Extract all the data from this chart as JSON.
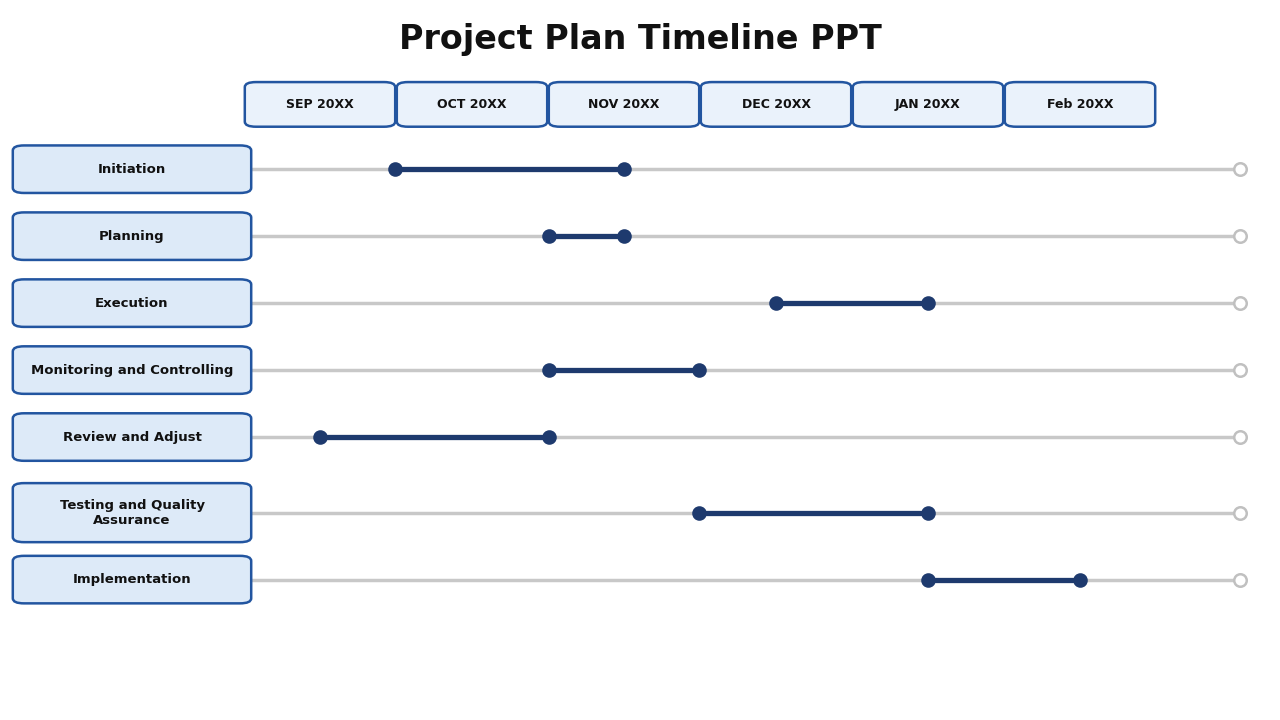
{
  "title": "Project Plan Timeline PPT",
  "title_fontsize": 24,
  "title_fontweight": "bold",
  "months": [
    "SEP 20XX",
    "OCT 20XX",
    "NOV 20XX",
    "DEC 20XX",
    "JAN 20XX",
    "Feb 20XX"
  ],
  "phases": [
    {
      "name": "Initiation",
      "start": 1,
      "end": 3
    },
    {
      "name": "Planning",
      "start": 2,
      "end": 3
    },
    {
      "name": "Execution",
      "start": 4,
      "end": 5
    },
    {
      "name": "Monitoring and Controlling",
      "start": 3,
      "end": 4
    },
    {
      "name": "Review and Adjust",
      "start": 1,
      "end": 3
    },
    {
      "name": "Testing and Quality\nAssurance",
      "start": 4,
      "end": 5
    },
    {
      "name": "Implementation",
      "start": 5,
      "end": 6
    }
  ],
  "bg_color": "#ffffff",
  "line_color_gray": "#c8c8c8",
  "bar_color": "#1e3a6e",
  "dot_color": "#1e3a6e",
  "end_circle_facecolor": "#ffffff",
  "end_circle_edgecolor": "#c0c0c0",
  "label_box_fill": "#ddeaf8",
  "label_box_edge": "#2255a0",
  "label_text_color": "#111111",
  "month_box_fill": "#eaf2fb",
  "month_box_edge": "#2255a0",
  "month_text_color": "#111111"
}
